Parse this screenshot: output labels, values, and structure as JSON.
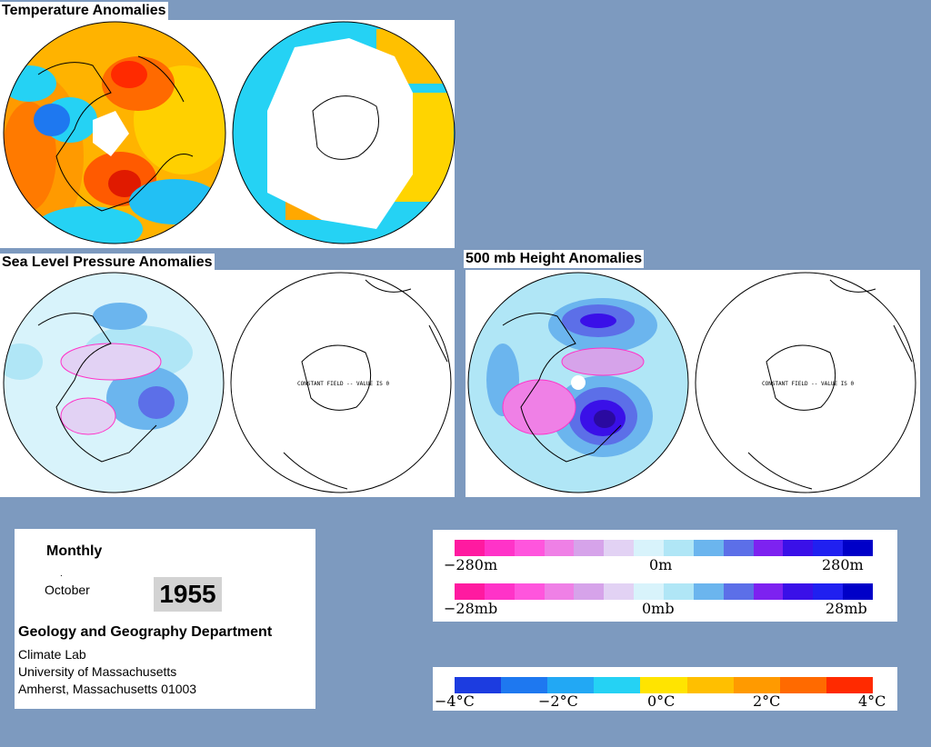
{
  "titles": {
    "temperature": "Temperature Anomalies",
    "slp": "Sea Level Pressure Anomalies",
    "height500": "500 mb Height Anomalies"
  },
  "map_annotations": {
    "slp_south": "CONSTANT FIELD -- VALUE IS 0",
    "height_south": "CONSTANT FIELD -- VALUE IS 0"
  },
  "info": {
    "period": "Monthly",
    "dot": ".",
    "month": "October",
    "year": "1955",
    "department": "Geology and Geography Department",
    "lab": "Climate Lab",
    "university": "University of Massachusetts",
    "address": "Amherst, Massachusetts 01003"
  },
  "legends": {
    "height": {
      "min": "−280m",
      "mid": "0m",
      "max": "280m"
    },
    "pressure": {
      "min": "−28mb",
      "mid": "0mb",
      "max": "28mb"
    },
    "temperature": {
      "t1": "−4°C",
      "t2": "−2°C",
      "t3": "0°C",
      "t4": "2°C",
      "t5": "4°C"
    }
  },
  "colors": {
    "background": "#7d9abf",
    "anomaly_scale": [
      "#ff1aa0",
      "#ff33c8",
      "#ff55dd",
      "#ef80e6",
      "#d6a3ea",
      "#e2d2f4",
      "#d8f3fb",
      "#b0e6f6",
      "#6bb5ee",
      "#5c6fe8",
      "#7d22f0",
      "#3a10e8",
      "#2020f0",
      "#0000c8"
    ],
    "temperature_scale": [
      "#1c3ce0",
      "#1e78f0",
      "#22a8f4",
      "#25d2f4",
      "#ffe400",
      "#ffbf00",
      "#ff9a00",
      "#ff6a00",
      "#ff2a00"
    ]
  }
}
